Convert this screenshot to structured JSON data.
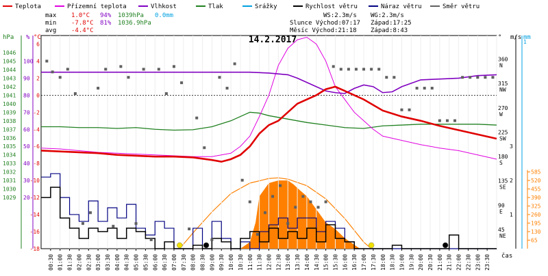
{
  "chart_data": {
    "type": "line",
    "title": "14.2.2017",
    "legend": [
      {
        "label": "Teplota",
        "color": "#e00000"
      },
      {
        "label": "Přízemní teplota",
        "color": "#e000e0"
      },
      {
        "label": "Vlhkost",
        "color": "#8000c0"
      },
      {
        "label": "Tlak",
        "color": "#208020"
      },
      {
        "label": "Srážky",
        "color": "#00a0e0"
      },
      {
        "label": "Rychlost větru",
        "color": "#000000"
      },
      {
        "label": "Náraz větru",
        "color": "#000080"
      },
      {
        "label": "Směr větru",
        "color": "#606060"
      }
    ],
    "stats": {
      "max_label": "max",
      "max_temp": "1.0°C",
      "max_hum": "94%",
      "max_press": "1039hPa",
      "precip": "0.0mm",
      "min_label": "min",
      "min_temp": "-7.8°C",
      "min_hum": "81%",
      "min_press": "1036.9hPa",
      "avg_label": "avg",
      "avg_temp": "-4.4°C",
      "ws": "WS:2.3m/s",
      "wg": "WG:2.3m/s",
      "sun_rise": "Slunce Východ:07:17",
      "sun_set": "Západ:17:25",
      "moon_rise": "Měsíc  Východ:21:18",
      "moon_set": "Západ:8:43"
    },
    "axes": {
      "hpa_title": "hPa",
      "pct_title": "%",
      "degc_title": "°C",
      "dir_title": "°",
      "ms_title": "m/s",
      "mm_title": "mm",
      "hpa_ticks": [
        "1046",
        "1045",
        "1044",
        "1043",
        "1042",
        "1041",
        "1040",
        "1039",
        "1038",
        "1037",
        "1036",
        "1035",
        "1034",
        "1033",
        "1032",
        "1031",
        "1030",
        "1029"
      ],
      "pct_ticks": [
        "100",
        "90",
        "80",
        "70",
        "60",
        "50",
        "40",
        "30",
        "20"
      ],
      "degc_ticks": [
        "6",
        "4",
        "2",
        "0",
        "-2",
        "-4",
        "-6",
        "-8",
        "-10",
        "-12",
        "-14",
        "-16",
        "-18"
      ],
      "dir_ticks": [
        "360",
        "315",
        "270",
        "225",
        "180",
        "135",
        "90",
        "45"
      ],
      "dir_labels": [
        "N",
        "NW",
        "W",
        "SW",
        "S",
        "SE",
        "E",
        "NE"
      ],
      "ms_ticks": [
        "3",
        "2",
        "1"
      ],
      "mm_ticks": [
        "1"
      ],
      "wm2_ticks": [
        "585",
        "520",
        "455",
        "390",
        "325",
        "260",
        "195",
        "130",
        "65"
      ],
      "time_label": "čas",
      "x_ticks": [
        "00:30",
        "01:00",
        "01:30",
        "02:00",
        "02:30",
        "03:00",
        "03:30",
        "04:00",
        "04:30",
        "05:00",
        "05:30",
        "06:00",
        "06:30",
        "07:00",
        "07:30",
        "08:00",
        "08:30",
        "09:00",
        "09:30",
        "10:00",
        "10:30",
        "11:00",
        "11:30",
        "12:00",
        "12:30",
        "13:00",
        "13:30",
        "14:00",
        "14:30",
        "15:00",
        "15:30",
        "16:00",
        "16:30",
        "17:00",
        "17:30",
        "18:00",
        "18:30",
        "19:00",
        "19:30",
        "20:00",
        "20:30",
        "21:00",
        "21:30",
        "22:00",
        "22:30",
        "23:00",
        "23:30"
      ],
      "temp_range": [
        -18,
        7
      ],
      "hour_range": [
        0,
        24
      ]
    },
    "series": [
      {
        "name": "Teplota",
        "x": [
          0,
          1,
          2,
          3,
          4,
          5,
          6,
          7,
          8,
          9,
          9.5,
          10,
          10.5,
          11,
          11.5,
          12,
          12.5,
          13,
          13.5,
          14,
          14.5,
          15,
          15.5,
          16,
          17,
          18,
          19,
          20,
          21,
          22,
          23,
          24
        ],
        "y": [
          -6.5,
          -6.6,
          -6.7,
          -6.8,
          -7,
          -7.1,
          -7.2,
          -7.2,
          -7.3,
          -7.6,
          -7.8,
          -7.5,
          -7,
          -6,
          -4.5,
          -3.5,
          -3,
          -2,
          -1,
          -0.5,
          0,
          0.7,
          1,
          0.5,
          -0.5,
          -1.8,
          -2.5,
          -3,
          -3.6,
          -4.1,
          -4.6,
          -5.1
        ]
      },
      {
        "name": "Přízemní teplota",
        "x": [
          0,
          1,
          2,
          3,
          4,
          5,
          6,
          7,
          8,
          9,
          10,
          10.5,
          11,
          11.5,
          12,
          12.5,
          13,
          13.5,
          14,
          14.5,
          15,
          15.5,
          16,
          16.5,
          17,
          17.5,
          18,
          19,
          20,
          21,
          22,
          23,
          24
        ],
        "y": [
          -6.2,
          -6.3,
          -6.5,
          -6.7,
          -6.8,
          -6.9,
          -7,
          -7.1,
          -7.2,
          -7.2,
          -6.8,
          -6,
          -4.8,
          -2.5,
          0,
          3.5,
          5.5,
          6.5,
          6.8,
          6,
          4,
          1,
          -0.5,
          -2,
          -3,
          -4,
          -4.8,
          -5.3,
          -5.8,
          -6.2,
          -6.5,
          -7,
          -7.5
        ]
      },
      {
        "name": "Vlhkost",
        "x": [
          0,
          1,
          2,
          3,
          4,
          5,
          6,
          7,
          8,
          9,
          10,
          11,
          12,
          13,
          13.5,
          14,
          14.5,
          15,
          15.5,
          16,
          16.5,
          17,
          17.5,
          18,
          18.5,
          19,
          19.5,
          20,
          21,
          22,
          23,
          24
        ],
        "y": [
          93.5,
          93.5,
          93.5,
          93.5,
          93.5,
          93.5,
          93.5,
          93.5,
          93.5,
          93.5,
          93.5,
          93.5,
          93,
          92,
          90,
          87.5,
          85,
          82.5,
          81.5,
          81,
          84,
          86,
          85,
          81.5,
          82,
          85,
          87,
          89,
          89.5,
          90,
          91.5,
          92
        ]
      },
      {
        "name": "Tlak",
        "x": [
          0,
          1,
          2,
          3,
          4,
          5,
          6,
          7,
          8,
          9,
          10,
          11,
          11.5,
          12,
          12.5,
          13,
          14,
          15,
          16,
          17,
          18,
          19,
          20,
          21,
          22,
          23,
          24
        ],
        "y": [
          1037.3,
          1037.3,
          1037.2,
          1037.2,
          1037.1,
          1037.2,
          1037.0,
          1036.9,
          1036.95,
          1037.3,
          1038.0,
          1039.0,
          1038.9,
          1038.6,
          1038.4,
          1038.2,
          1037.8,
          1037.5,
          1037.2,
          1037.1,
          1037.4,
          1037.5,
          1037.6,
          1037.6,
          1037.6,
          1037.6,
          1037.5
        ]
      },
      {
        "name": "Rychlost větru",
        "x": [
          0,
          0.5,
          1,
          1.5,
          2,
          2.5,
          3,
          3.5,
          4,
          4.5,
          5,
          5.5,
          6,
          6.5,
          7,
          7.5,
          8,
          8.5,
          9,
          9.5,
          10,
          10.5,
          11,
          11.5,
          12,
          12.5,
          13,
          13.5,
          14,
          14.5,
          15,
          15.5,
          16,
          16.5,
          17,
          17.5,
          18,
          18.5,
          19,
          19.5,
          20,
          20.5,
          21,
          21.5,
          22,
          23,
          24
        ],
        "y": [
          1.5,
          1.8,
          0.9,
          0.6,
          0.3,
          0.6,
          0.5,
          0.6,
          0.3,
          0.6,
          0.5,
          0.3,
          0,
          0.2,
          0,
          0,
          0.1,
          0,
          0.3,
          0.2,
          0,
          0.3,
          0.5,
          0.2,
          0.6,
          0.3,
          0.5,
          0.3,
          0.6,
          0.2,
          0.7,
          0.3,
          0.2,
          0,
          0,
          0,
          0,
          0.1,
          0,
          0,
          0,
          0,
          0,
          0.4,
          0,
          0,
          0
        ]
      },
      {
        "name": "Náraz větru",
        "x": [
          0,
          0.5,
          1,
          1.5,
          2,
          2.5,
          3,
          3.5,
          4,
          4.5,
          5,
          5.5,
          6,
          6.5,
          7,
          7.5,
          8,
          8.5,
          9,
          9.5,
          10,
          10.5,
          11,
          11.5,
          12,
          12.5,
          13,
          13.5,
          14,
          14.5,
          15,
          15.5,
          16,
          16.5,
          17,
          18,
          19,
          20,
          21,
          22,
          23,
          24
        ],
        "y": [
          2.1,
          2.2,
          1.5,
          1.0,
          0.8,
          1.4,
          0.8,
          1.2,
          0.9,
          1.3,
          0.6,
          0.4,
          0.8,
          0.6,
          0,
          0,
          0.6,
          0,
          0.8,
          0.3,
          0,
          0.2,
          0,
          0.5,
          0.7,
          0.9,
          0.6,
          0.9,
          0.9,
          0.5,
          0.8,
          0.6,
          0.2,
          0,
          0,
          0,
          0,
          0,
          0,
          0,
          0,
          0
        ]
      },
      {
        "name": "Solar",
        "x": [
          8.7,
          9.5,
          10.5,
          11,
          11.3,
          11.5,
          12,
          12.5,
          13,
          13.3,
          13.6,
          14,
          14.5,
          15,
          15.5,
          16,
          16.5,
          16.8
        ],
        "y": [
          0,
          0,
          0,
          50,
          200,
          400,
          500,
          520,
          520,
          490,
          450,
          400,
          300,
          200,
          150,
          80,
          30,
          0
        ]
      },
      {
        "name": "Solar max",
        "x": [
          7.3,
          8,
          9,
          10,
          11,
          12,
          12.5,
          13,
          14,
          15,
          16,
          17,
          17.4
        ],
        "y": [
          0,
          120,
          280,
          420,
          500,
          535,
          540,
          530,
          480,
          380,
          230,
          50,
          0
        ]
      }
    ],
    "wind_dir_points": {
      "x": [
        0.3,
        0.6,
        1.0,
        1.4,
        1.8,
        2.2,
        2.6,
        3.0,
        3.4,
        3.8,
        4.2,
        4.6,
        5.0,
        5.4,
        5.8,
        6.2,
        6.6,
        7.0,
        7.4,
        7.8,
        8.2,
        8.6,
        9.0,
        9.4,
        9.8,
        10.2,
        10.6,
        11.0,
        11.4,
        11.8,
        12.2,
        12.6,
        13.0,
        13.4,
        13.8,
        14.2,
        14.6,
        15.0,
        15.4,
        15.8,
        16.2,
        16.6,
        17.0,
        17.4,
        17.8,
        18.2,
        18.6,
        19.0,
        19.4,
        19.8,
        20.2,
        20.6,
        21.0,
        21.4,
        21.8,
        22.2,
        22.6,
        23.0,
        23.4,
        23.8
      ],
      "y": [
        360,
        340,
        330,
        345,
        300,
        60,
        80,
        310,
        345,
        55,
        350,
        330,
        60,
        345,
        30,
        345,
        300,
        350,
        320,
        50,
        255,
        200,
        30,
        330,
        310,
        355,
        140,
        100,
        40,
        80,
        110,
        130,
        60,
        90,
        110,
        100,
        90,
        100,
        350,
        345,
        345,
        345,
        345,
        345,
        345,
        330,
        330,
        270,
        270,
        310,
        310,
        310,
        250,
        250,
        250,
        330,
        330,
        330,
        330,
        330
      ]
    },
    "sun_markers": [
      {
        "x": 7.3,
        "fill": "#f0e000"
      },
      {
        "x": 17.4,
        "fill": "#f0e000"
      },
      {
        "x": 8.7,
        "fill": "#000000"
      },
      {
        "x": 21.3,
        "fill": "#000000"
      }
    ]
  }
}
